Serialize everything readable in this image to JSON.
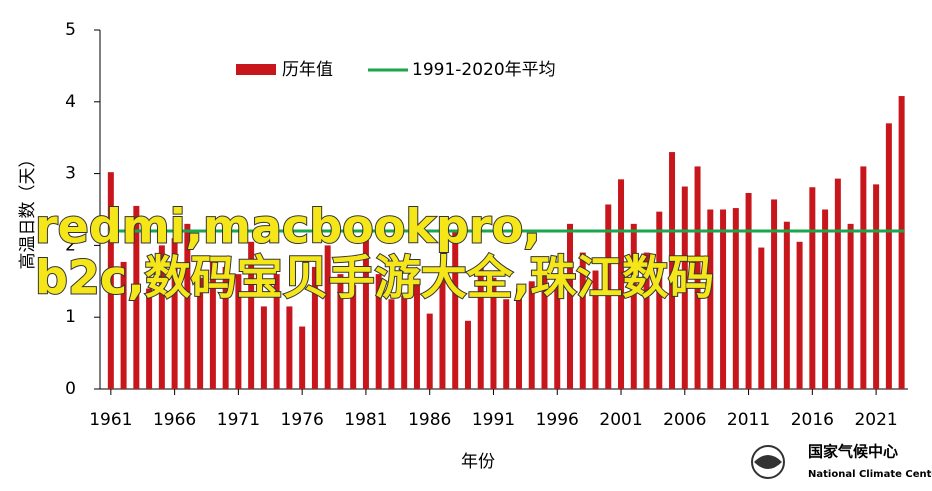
{
  "chart_data": {
    "type": "bar",
    "xlabel": "年份",
    "ylabel": "高温日数（天）",
    "x": [
      1961,
      1962,
      1963,
      1964,
      1965,
      1966,
      1967,
      1968,
      1969,
      1970,
      1971,
      1972,
      1973,
      1974,
      1975,
      1976,
      1977,
      1978,
      1979,
      1980,
      1981,
      1982,
      1983,
      1984,
      1985,
      1986,
      1987,
      1988,
      1989,
      1990,
      1991,
      1992,
      1993,
      1994,
      1995,
      1996,
      1997,
      1998,
      1999,
      2000,
      2001,
      2002,
      2003,
      2004,
      2005,
      2006,
      2007,
      2008,
      2009,
      2010,
      2011,
      2012,
      2013,
      2014,
      2015,
      2016,
      2017,
      2018,
      2019,
      2020,
      2021,
      2022,
      2023
    ],
    "series": [
      {
        "name": "历年值",
        "color": "#c8161d",
        "values": [
          3.02,
          1.77,
          2.55,
          1.4,
          2.0,
          2.1,
          2.3,
          1.55,
          1.8,
          1.7,
          1.6,
          2.05,
          1.15,
          1.6,
          1.15,
          0.87,
          1.7,
          2.0,
          1.6,
          1.45,
          2.25,
          1.6,
          1.25,
          1.3,
          1.45,
          1.05,
          1.55,
          2.2,
          0.95,
          1.7,
          1.55,
          1.25,
          1.4,
          1.5,
          1.6,
          1.6,
          2.3,
          1.9,
          1.65,
          2.57,
          2.92,
          2.3,
          1.9,
          2.47,
          3.3,
          2.82,
          3.1,
          2.5,
          2.5,
          2.52,
          2.73,
          1.97,
          2.64,
          2.33,
          2.05,
          2.81,
          2.5,
          2.93,
          2.3,
          3.1,
          2.85,
          3.7,
          4.08
        ]
      }
    ],
    "average": {
      "name": "1991-2020年平均",
      "color": "#1aa64a",
      "value": 2.2
    },
    "xlim": [
      1960.15,
      2023.5
    ],
    "xticks": [
      1961,
      1966,
      1971,
      1976,
      1981,
      1986,
      1991,
      1996,
      2001,
      2006,
      2011,
      2016,
      2021
    ],
    "ylim": [
      0,
      5
    ],
    "yticks": [
      0,
      1,
      2,
      3,
      4,
      5
    ]
  },
  "watermark": [
    "redmi,macbookpro,",
    "b2c,数码宝贝手游大全,珠江数码"
  ],
  "logo": {
    "name_cn": "国家气候中心",
    "name_en": "National Climate Center"
  }
}
